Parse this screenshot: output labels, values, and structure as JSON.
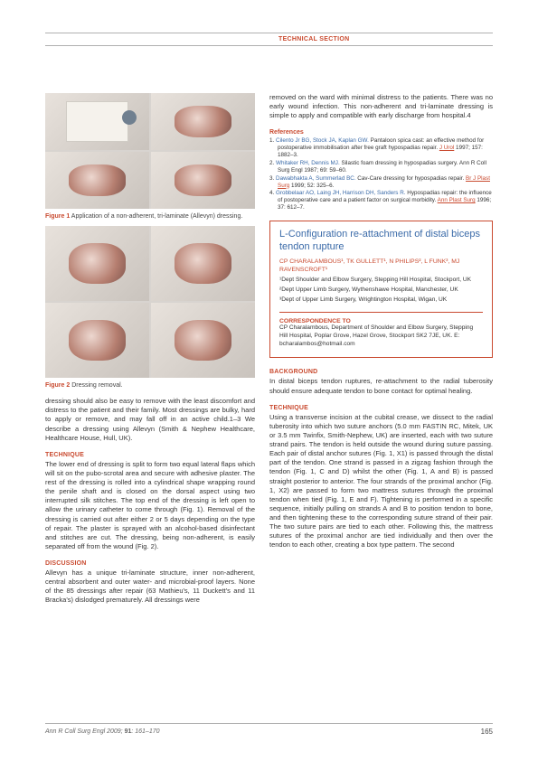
{
  "header": {
    "section_label": "TECHNICAL SECTION"
  },
  "left": {
    "fig1_caption_num": "Figure 1",
    "fig1_caption": "Application of a non-adherent, tri-laminate (Allevyn) dressing.",
    "fig2_caption_num": "Figure 2",
    "fig2_caption": "Dressing removal.",
    "para1": "dressing should also be easy to remove with the least discomfort and distress to the patient and their family. Most dressings are bulky, hard to apply or remove, and may fall off in an active child.1–3 We describe a dressing using Allevyn (Smith & Nephew Healthcare, Healthcare House, Hull, UK).",
    "technique_head": "TECHNIQUE",
    "technique_body": "The lower end of dressing is split to form two equal lateral flaps which will sit on the pubo-scrotal area and secure with adhesive plaster. The rest of the dressing is rolled into a cylindrical shape wrapping round the penile shaft and is closed on the dorsal aspect using two interrupted silk stitches. The top end of the dressing is left open to allow the urinary catheter to come through (Fig. 1). Removal of the dressing is carried out after either 2 or 5 days depending on the type of repair. The plaster is sprayed with an alcohol-based disinfectant and stitches are cut. The dressing, being non-adherent, is easily separated off from the wound (Fig. 2).",
    "discussion_head": "DISCUSSION",
    "discussion_body": "Allevyn has a unique tri-laminate structure, inner non-adherent, central absorbent and outer water- and microbial-proof layers. None of the 85 dressings after repair (63 Mathieu's, 11 Duckett's and 11 Bracka's) dislodged prematurely. All dressings were"
  },
  "right": {
    "para1": "removed on the ward with minimal distress to the patients. There was no early wound infection. This non-adherent and tri-laminate dressing is simple to apply and compatible with early discharge from hospital.4",
    "refs_head": "References",
    "refs": [
      {
        "n": "1.",
        "auth": "Cilento Jr BG, Stock JA, Kaplan GW.",
        "rest": " Pantaloon spica cast: an effective method for postoperative immobilisation after free graft hypospadias repair. ",
        "j": "J Urol",
        "tail": " 1997; 157: 1882–3."
      },
      {
        "n": "2.",
        "auth": "Whitaker RH, Dennis MJ.",
        "rest": " Silastic foam dressing in hypospadias surgery. Ann R Coll Surg Engl 1987; 69: 59–60.",
        "j": "",
        "tail": ""
      },
      {
        "n": "3.",
        "auth": "Dawabhakta A, Summerlad BC.",
        "rest": " Cav-Care dressing for hypospadias repair. ",
        "j": "Br J Plast Surg",
        "tail": " 1999; 52: 325–6."
      },
      {
        "n": "4.",
        "auth": "Grobbelaar AO, Laing JH, Harrison DH, Sanders R.",
        "rest": " Hypospadias repair: the influence of postoperative care and a patient factor on surgical morbidity. ",
        "j": "Ann Plast Surg",
        "tail": " 1996; 37: 612–7."
      }
    ],
    "article": {
      "title": "L-Configuration re-attachment of distal biceps tendon rupture",
      "authors": "CP CHARALAMBOUS¹, TK GULLETT¹, N PHILIPS², L FUNK³, MJ RAVENSCROFT¹",
      "aff1": "¹Dept Shoulder and Elbow Surgery, Stepping Hill Hospital, Stockport, UK",
      "aff2": "²Dept Upper Limb Surgery, Wythenshawe Hospital, Manchester, UK",
      "aff3": "³Dept of Upper Limb Surgery, Wrightington Hospital, Wigan, UK",
      "corr_head": "CORRESPONDENCE TO",
      "corr_body": "CP Charalambous, Department of Shoulder and Elbow Surgery, Stepping Hill Hospital, Poplar Grove, Hazel Grove, Stockport SK2 7JE, UK.  E: bcharalambos@hotmail.com"
    },
    "background_head": "BACKGROUND",
    "background_body": "In distal biceps tendon ruptures, re-attachment to the radial tuberosity should ensure adequate tendon to bone contact for optimal healing.",
    "technique_head": "TECHNIQUE",
    "technique_body": "Using a transverse incision at the cubital crease, we dissect to the radial tuberosity into which two suture anchors (5.0 mm FASTIN RC, Mitek, UK or 3.5 mm Twinfix, Smith-Nephew, UK) are inserted, each with two suture strand pairs. The tendon is held outside the wound during suture passing. Each pair of distal anchor sutures (Fig. 1, X1) is passed through the distal part of the tendon. One strand is passed in a zigzag fashion through the tendon (Fig. 1, C and D) whilst the other (Fig. 1, A and B) is passed straight posterior to anterior. The four strands of the proximal anchor (Fig. 1, X2) are passed to form two mattress sutures through the proximal tendon when tied (Fig. 1, E and F). Tightening is performed in a specific sequence, initially pulling on strands A and B to position tendon to bone, and then tightening these to the corresponding suture strand of their pair. The two suture pairs are tied to each other. Following this, the mattress sutures of the proximal anchor are tied individually and then over the tendon to each other, creating a box type pattern. The second"
  },
  "footer": {
    "citation_a": "Ann R Coll Surg Engl 2009; ",
    "citation_b": "91",
    "citation_c": ": 161–170",
    "page": "165"
  },
  "colors": {
    "accent": "#c94a2f",
    "link": "#3a6aa8",
    "rule": "#b0b0b0",
    "text": "#333333",
    "bg": "#ffffff"
  }
}
